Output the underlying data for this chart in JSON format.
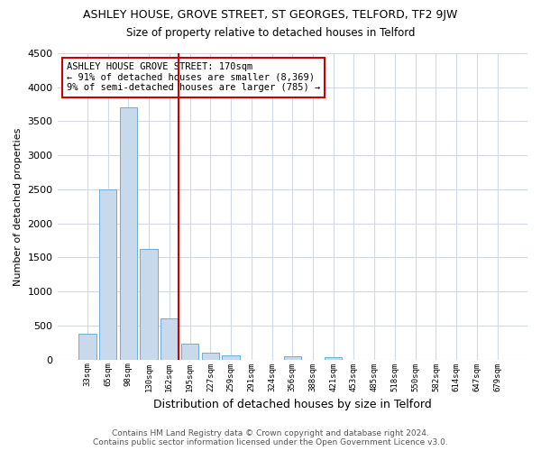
{
  "title": "ASHLEY HOUSE, GROVE STREET, ST GEORGES, TELFORD, TF2 9JW",
  "subtitle": "Size of property relative to detached houses in Telford",
  "xlabel": "Distribution of detached houses by size in Telford",
  "ylabel": "Number of detached properties",
  "categories": [
    "33sqm",
    "65sqm",
    "98sqm",
    "130sqm",
    "162sqm",
    "195sqm",
    "227sqm",
    "259sqm",
    "291sqm",
    "324sqm",
    "356sqm",
    "388sqm",
    "421sqm",
    "453sqm",
    "485sqm",
    "518sqm",
    "550sqm",
    "582sqm",
    "614sqm",
    "647sqm",
    "679sqm"
  ],
  "values": [
    380,
    2500,
    3700,
    1620,
    600,
    240,
    100,
    55,
    0,
    0,
    50,
    0,
    40,
    0,
    0,
    0,
    0,
    0,
    0,
    0,
    0
  ],
  "bar_color": "#c8d9ec",
  "bar_edge_color": "#6aaed6",
  "vline_color": "#cc0000",
  "annotation_text": "ASHLEY HOUSE GROVE STREET: 170sqm\n← 91% of detached houses are smaller (8,369)\n9% of semi-detached houses are larger (785) →",
  "annotation_box_color": "#ffffff",
  "annotation_box_edge": "#cc0000",
  "ylim": [
    0,
    4500
  ],
  "yticks": [
    0,
    500,
    1000,
    1500,
    2000,
    2500,
    3000,
    3500,
    4000,
    4500
  ],
  "footer_line1": "Contains HM Land Registry data © Crown copyright and database right 2024.",
  "footer_line2": "Contains public sector information licensed under the Open Government Licence v3.0.",
  "bg_color": "#ffffff",
  "grid_color": "#d0d9e8",
  "title_fontsize": 9,
  "subtitle_fontsize": 8.5
}
